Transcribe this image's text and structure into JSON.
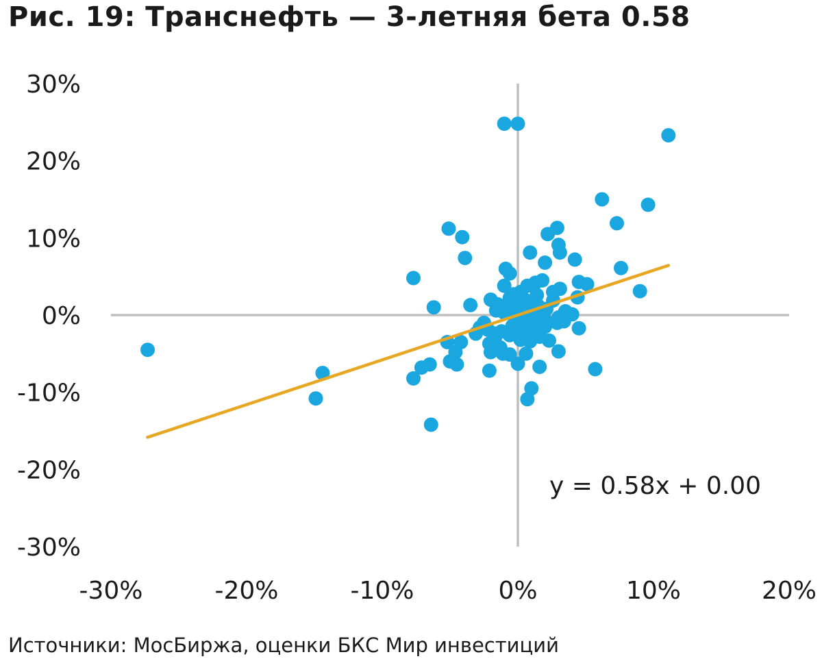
{
  "title": "Рис. 19: Транснефть — 3-летняя бета 0.58",
  "source": "Источники: МосБиржа, оценки БКС Мир инвестиций",
  "chart_data": {
    "type": "scatter",
    "xlim": [
      -30,
      20
    ],
    "ylim": [
      -30,
      30
    ],
    "x_ticks": [
      "-30%",
      "-20%",
      "-10%",
      "0%",
      "10%",
      "20%"
    ],
    "y_ticks": [
      "30%",
      "20%",
      "10%",
      "0%",
      "-10%",
      "-20%",
      "-30%"
    ],
    "point_color": "#1aa7e0",
    "trend_color": "#e8a723",
    "axis_color": "#bfbfbf",
    "trendline": {
      "slope": 0.58,
      "intercept": 0.0,
      "x_from": -27.3,
      "x_to": 11.1,
      "label": "y = 0.58x + 0.00"
    },
    "points": [
      [
        -27.3,
        -4.5
      ],
      [
        -14.9,
        -10.8
      ],
      [
        -14.4,
        -7.5
      ],
      [
        -6.4,
        -14.2
      ],
      [
        -7.7,
        4.8
      ],
      [
        -6.2,
        1.0
      ],
      [
        -5.1,
        11.2
      ],
      [
        -4.1,
        10.1
      ],
      [
        -3.9,
        7.4
      ],
      [
        -3.5,
        1.3
      ],
      [
        -7.7,
        -8.2
      ],
      [
        -7.1,
        -6.8
      ],
      [
        -6.5,
        -6.4
      ],
      [
        -5.0,
        -6.0
      ],
      [
        -4.5,
        -6.4
      ],
      [
        -4.6,
        -4.8
      ],
      [
        -4.2,
        -3.5
      ],
      [
        -5.2,
        -3.5
      ],
      [
        -3.1,
        -2.4
      ],
      [
        -2.8,
        -1.6
      ],
      [
        -2.5,
        -1.0
      ],
      [
        -2.0,
        2.0
      ],
      [
        -1.5,
        1.4
      ],
      [
        -1.0,
        3.8
      ],
      [
        -0.9,
        6.0
      ],
      [
        -0.6,
        5.4
      ],
      [
        -1.0,
        24.8
      ],
      [
        0.0,
        24.8
      ],
      [
        11.1,
        23.3
      ],
      [
        6.2,
        15.0
      ],
      [
        9.6,
        14.3
      ],
      [
        7.3,
        11.9
      ],
      [
        2.9,
        11.3
      ],
      [
        2.2,
        10.5
      ],
      [
        3.0,
        9.1
      ],
      [
        3.1,
        8.1
      ],
      [
        0.9,
        8.1
      ],
      [
        2.0,
        6.8
      ],
      [
        4.2,
        7.2
      ],
      [
        7.6,
        6.1
      ],
      [
        4.5,
        4.3
      ],
      [
        5.1,
        4.0
      ],
      [
        9.0,
        3.1
      ],
      [
        4.4,
        2.3
      ],
      [
        3.1,
        3.4
      ],
      [
        2.6,
        3.0
      ],
      [
        1.8,
        4.5
      ],
      [
        1.3,
        4.2
      ],
      [
        0.7,
        3.8
      ],
      [
        0.2,
        3.0
      ],
      [
        -0.3,
        2.7
      ],
      [
        -0.6,
        2.2
      ],
      [
        0.5,
        2.0
      ],
      [
        1.0,
        1.5
      ],
      [
        1.5,
        1.2
      ],
      [
        2.1,
        0.8
      ],
      [
        2.6,
        1.9
      ],
      [
        3.5,
        0.5
      ],
      [
        4.0,
        0.1
      ],
      [
        3.0,
        -0.3
      ],
      [
        2.0,
        -0.6
      ],
      [
        1.2,
        -0.2
      ],
      [
        0.5,
        -0.4
      ],
      [
        -0.2,
        -0.3
      ],
      [
        -1.0,
        0.3
      ],
      [
        -1.6,
        0.6
      ],
      [
        -2.2,
        -1.9
      ],
      [
        -1.7,
        -3.1
      ],
      [
        -2.1,
        -3.7
      ],
      [
        -1.3,
        -4.2
      ],
      [
        -2.0,
        -4.8
      ],
      [
        -1.1,
        -5.0
      ],
      [
        -0.6,
        -5.1
      ],
      [
        0.0,
        -6.3
      ],
      [
        0.6,
        -5.0
      ],
      [
        1.6,
        -6.7
      ],
      [
        -2.1,
        -7.2
      ],
      [
        1.0,
        -9.5
      ],
      [
        0.7,
        -10.9
      ],
      [
        5.7,
        -7.0
      ],
      [
        3.0,
        -4.7
      ],
      [
        4.5,
        -1.7
      ],
      [
        2.3,
        -3.3
      ],
      [
        1.6,
        -2.8
      ],
      [
        0.9,
        -2.4
      ],
      [
        0.3,
        -1.9
      ],
      [
        -0.4,
        -1.4
      ],
      [
        1.2,
        -1.2
      ],
      [
        2.0,
        -1.5
      ],
      [
        2.9,
        -1.0
      ],
      [
        3.4,
        -0.8
      ],
      [
        0.6,
        0.9
      ],
      [
        -0.1,
        1.4
      ],
      [
        0.4,
        0.3
      ],
      [
        1.7,
        0.4
      ],
      [
        -1.2,
        -2.1
      ],
      [
        -0.6,
        -2.6
      ],
      [
        0.2,
        -3.2
      ],
      [
        0.9,
        -3.4
      ],
      [
        -1.7,
        -2.4
      ],
      [
        -0.8,
        0.9
      ],
      [
        1.4,
        2.6
      ]
    ]
  }
}
